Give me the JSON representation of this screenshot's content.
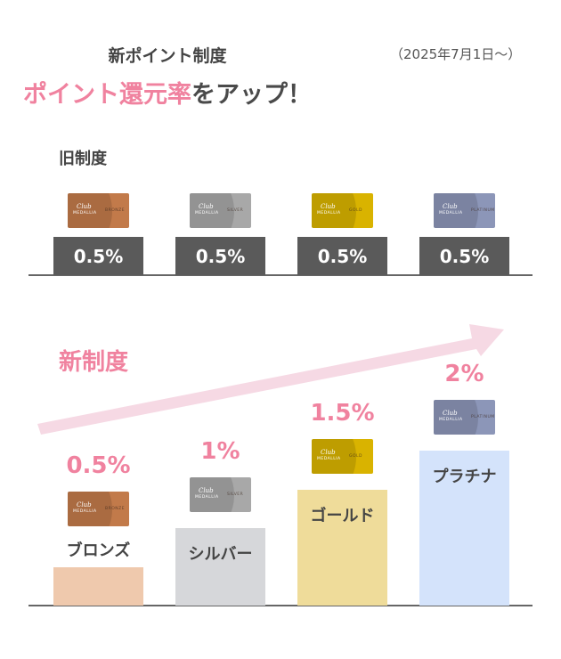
{
  "header": {
    "title": "新ポイント制度",
    "date": "（2025年7月1日～）",
    "headline_highlight": "ポイント還元率",
    "headline_rest": "をアップ！"
  },
  "old_section_label": "旧制度",
  "new_section_label": "新制度",
  "card_logo": {
    "club": "Club",
    "brand": "MEDALLIA"
  },
  "colors": {
    "accent_pink": "#f0829f",
    "arrow": "#f6d9e4",
    "old_bar": "#5a5a5a"
  },
  "chart_data": {
    "type": "bar",
    "categories": [
      "ブロンズ",
      "シルバー",
      "ゴールド",
      "プラチナ"
    ],
    "card_tiers": [
      "BRONZE",
      "SILVER",
      "GOLD",
      "PLATINUM"
    ],
    "series": [
      {
        "name": "旧制度",
        "values": [
          0.5,
          0.5,
          0.5,
          0.5
        ],
        "labels": [
          "0.5%",
          "0.5%",
          "0.5%",
          "0.5%"
        ]
      },
      {
        "name": "新制度",
        "values": [
          0.5,
          1,
          1.5,
          2
        ],
        "labels": [
          "0.5%",
          "1%",
          "1.5%",
          "2%"
        ]
      }
    ],
    "unit": "%",
    "bar_colors": [
      "#efc9ad",
      "#d6d7da",
      "#efdc9a",
      "#d4e3fb"
    ],
    "card_colors": [
      "#c27a4a",
      "#a8a8a8",
      "#d9b300",
      "#8c96b8"
    ]
  }
}
